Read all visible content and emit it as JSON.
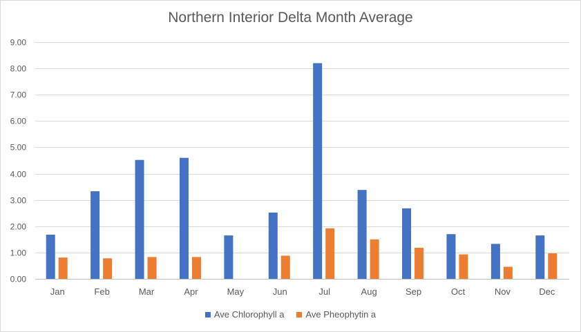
{
  "chart_data": {
    "type": "bar",
    "title": "Northern Interior Delta Month Average",
    "xlabel": "",
    "ylabel": "",
    "ylim": [
      0,
      9
    ],
    "ytick_step": 1,
    "ytick_format": "0.00",
    "grid": true,
    "legend": "bottom",
    "categories": [
      "Jan",
      "Feb",
      "Mar",
      "Apr",
      "May",
      "Jun",
      "Jul",
      "Aug",
      "Sep",
      "Oct",
      "Nov",
      "Dec"
    ],
    "series": [
      {
        "name": "Ave Chlorophyll a",
        "color": "#4472c4",
        "values": [
          1.68,
          3.33,
          4.52,
          4.6,
          1.65,
          2.52,
          8.2,
          3.38,
          2.68,
          1.7,
          1.33,
          1.65
        ]
      },
      {
        "name": "Ave Pheophytin a",
        "color": "#ed7d31",
        "values": [
          0.81,
          0.78,
          0.83,
          0.83,
          null,
          0.88,
          1.92,
          1.5,
          1.18,
          0.93,
          0.46,
          0.97
        ]
      }
    ]
  }
}
